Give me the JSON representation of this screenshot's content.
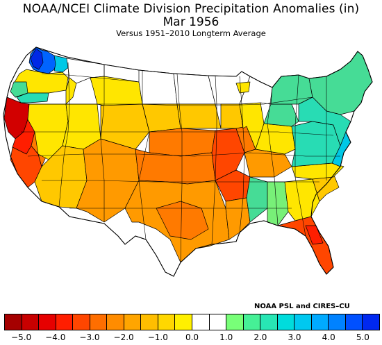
{
  "title": "NOAA/NCEI Climate Division Precipitation Anomalies (in)",
  "subtitle_period": "Mar 1956",
  "subtitle_baseline": "Versus 1951–2010 Longterm Average",
  "credit": "NOAA PSL and CIRES–CU",
  "legend": {
    "colors": [
      "#a50000",
      "#c80000",
      "#e60000",
      "#ff1e00",
      "#ff4600",
      "#ff6e00",
      "#ff8c00",
      "#ffa500",
      "#ffbe00",
      "#ffd700",
      "#fff000",
      "#ffffff",
      "#ffffff",
      "#78ff78",
      "#46f096",
      "#28e6b4",
      "#00dcdc",
      "#00c8f0",
      "#00aaff",
      "#0082ff",
      "#0050ff",
      "#0028f0"
    ],
    "tick_labels": [
      "−5.0",
      "−4.0",
      "−3.0",
      "−2.0",
      "−1.0",
      "0.0",
      "1.0",
      "2.0",
      "3.0",
      "4.0",
      "5.0"
    ]
  },
  "map": {
    "region": "Contiguous United States climate divisions",
    "fill_categories": {
      "white": "#ffffff",
      "yellow": "#ffe600",
      "gold": "#ffc800",
      "orange": "#ff9a00",
      "dark_orange": "#ff7a00",
      "red_orange": "#ff4600",
      "red": "#ff1e00",
      "dark_red": "#d20000",
      "light_green": "#78f078",
      "green": "#46dc96",
      "teal": "#28dcb4",
      "cyan": "#00c8e6",
      "blue": "#0064ff",
      "dark_blue": "#0028e6"
    }
  }
}
